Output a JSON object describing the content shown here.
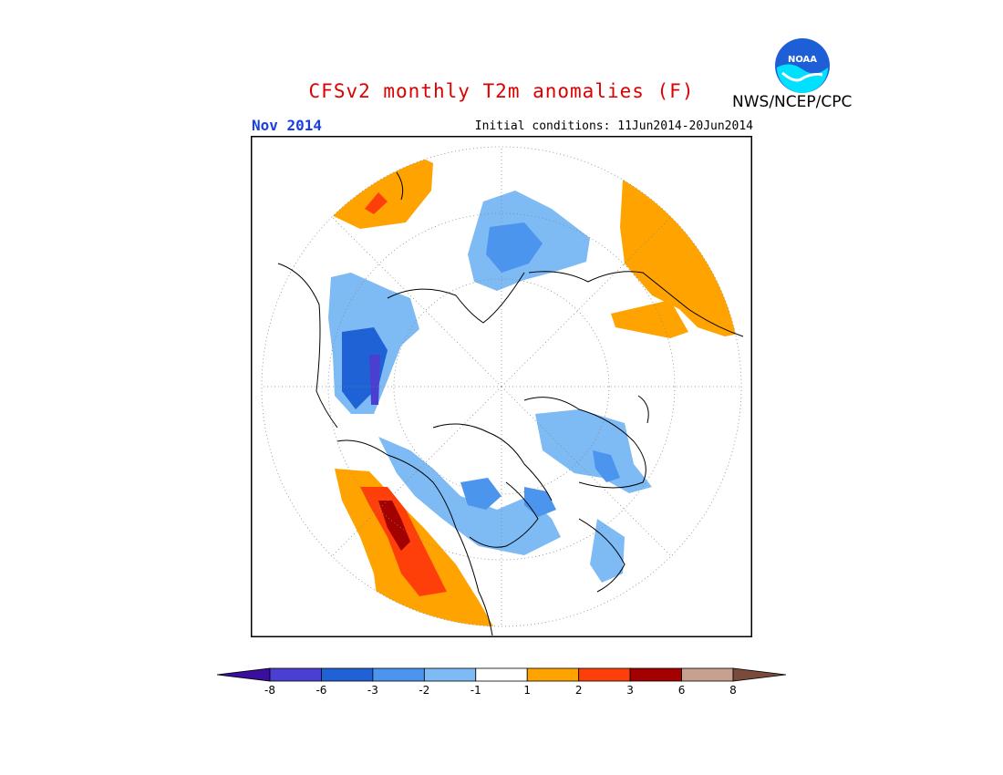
{
  "header": {
    "title": "CFSv2 monthly T2m anomalies (F)",
    "month": "Nov 2014",
    "initial_conditions": "Initial conditions: 11Jun2014-20Jun2014",
    "agency": "NWS/NCEP/CPC",
    "logo_text": "NOAA"
  },
  "colors": {
    "title": "#dd0000",
    "month": "#1a3fe0",
    "frame": "#000000"
  },
  "legend": {
    "tick_labels": [
      "-8",
      "-6",
      "-3",
      "-2",
      "-1",
      "1",
      "2",
      "3",
      "6",
      "8"
    ],
    "bin_colors": [
      "#3a0fa0",
      "#4a3fd0",
      "#1e62d6",
      "#4b95ee",
      "#7ebaf4",
      "#ffffff",
      "#ffa300",
      "#ff3f0a",
      "#a30000",
      "#c8a08f",
      "#7a4a3a"
    ]
  },
  "map": {
    "projection": "north-polar-stereographic",
    "variable": "2m temperature anomaly",
    "units": "F",
    "regions": [
      {
        "name": "north-america-west",
        "anomaly": "warm",
        "peak_bin": "3 to 6"
      },
      {
        "name": "north-america-east-canada",
        "anomaly": "cool",
        "peak_bin": "-3 to -2"
      },
      {
        "name": "eastern-russia-siberia",
        "anomaly": "cool",
        "peak_bin": "-3 to -1"
      },
      {
        "name": "western-russia-scandinavia",
        "anomaly": "cool",
        "peak_bin": "-2 to -1"
      },
      {
        "name": "central-asia",
        "anomaly": "cool",
        "peak_bin": "-6 to -3"
      },
      {
        "name": "north-africa-middle-east",
        "anomaly": "warm",
        "peak_bin": "1 to 2"
      },
      {
        "name": "north-pacific",
        "anomaly": "warm",
        "peak_bin": "2 to 3"
      }
    ]
  }
}
